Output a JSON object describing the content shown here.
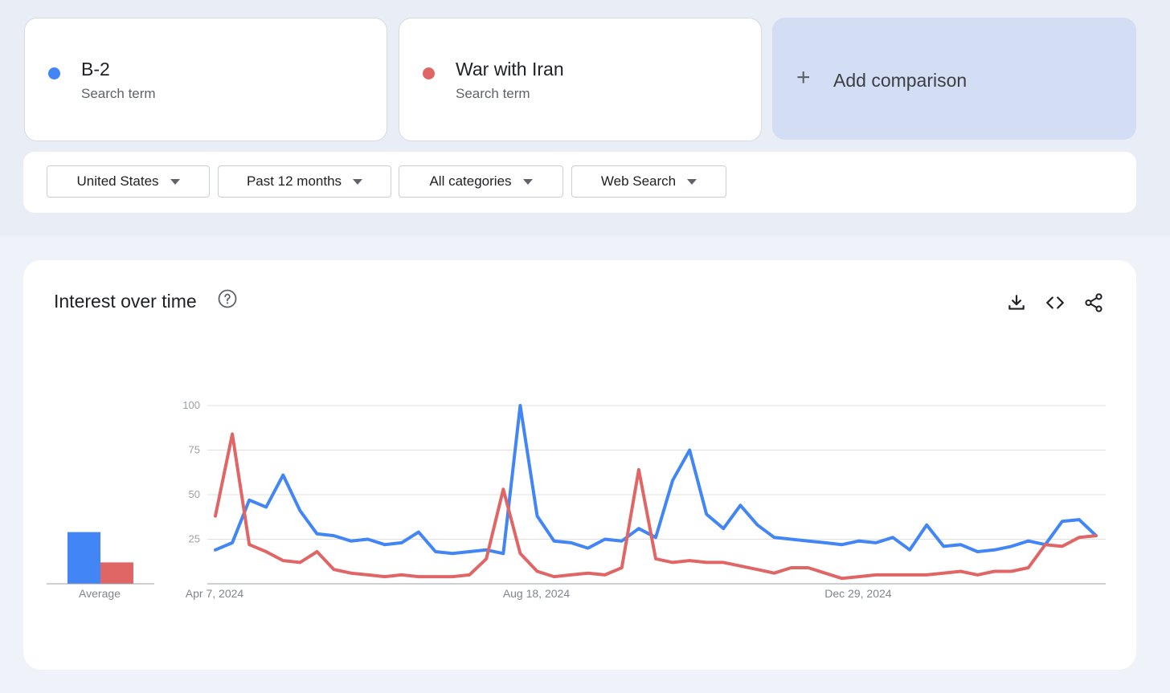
{
  "terms": [
    {
      "name": "B-2",
      "subtitle": "Search term",
      "color": "#4285f4"
    },
    {
      "name": "War with Iran",
      "subtitle": "Search term",
      "color": "#e06666"
    }
  ],
  "add_comparison": {
    "icon": "plus-icon",
    "label": "Add comparison"
  },
  "filters": {
    "region": "United States",
    "time": "Past 12 months",
    "category": "All categories",
    "search_type": "Web Search"
  },
  "panel": {
    "title": "Interest over time",
    "icons": [
      "help-icon",
      "download-icon",
      "embed-code-icon",
      "share-icon"
    ]
  },
  "chart_data": {
    "type": "line",
    "average_label": "Average",
    "averages": [
      {
        "name": "B-2",
        "value": 29,
        "color": "#4285f4"
      },
      {
        "name": "War with Iran",
        "value": 12,
        "color": "#e06666"
      }
    ],
    "ylim": [
      0,
      100
    ],
    "yticks": [
      "25",
      "50",
      "75",
      "100"
    ],
    "xtick_labels": [
      {
        "index": 0,
        "label": "Apr 7, 2024"
      },
      {
        "index": 19,
        "label": "Aug 18, 2024"
      },
      {
        "index": 38,
        "label": "Dec 29, 2024"
      }
    ],
    "grid": true,
    "series": [
      {
        "name": "B-2",
        "color": "#4285f4",
        "values": [
          19,
          23,
          47,
          43,
          61,
          41,
          28,
          27,
          24,
          25,
          22,
          23,
          29,
          18,
          17,
          18,
          19,
          17,
          100,
          38,
          24,
          23,
          20,
          25,
          24,
          31,
          26,
          58,
          75,
          39,
          31,
          44,
          33,
          26,
          25,
          24,
          23,
          22,
          24,
          23,
          26,
          19,
          33,
          21,
          22,
          18,
          19,
          21,
          24,
          22,
          35,
          36,
          27
        ]
      },
      {
        "name": "War with Iran",
        "color": "#e06666",
        "values": [
          38,
          84,
          22,
          18,
          13,
          12,
          18,
          8,
          6,
          5,
          4,
          5,
          4,
          4,
          4,
          5,
          14,
          53,
          17,
          7,
          4,
          5,
          6,
          5,
          9,
          64,
          14,
          12,
          13,
          12,
          12,
          10,
          8,
          6,
          9,
          9,
          6,
          3,
          4,
          5,
          5,
          5,
          5,
          6,
          7,
          5,
          7,
          7,
          9,
          22,
          21,
          26,
          27
        ]
      }
    ]
  }
}
